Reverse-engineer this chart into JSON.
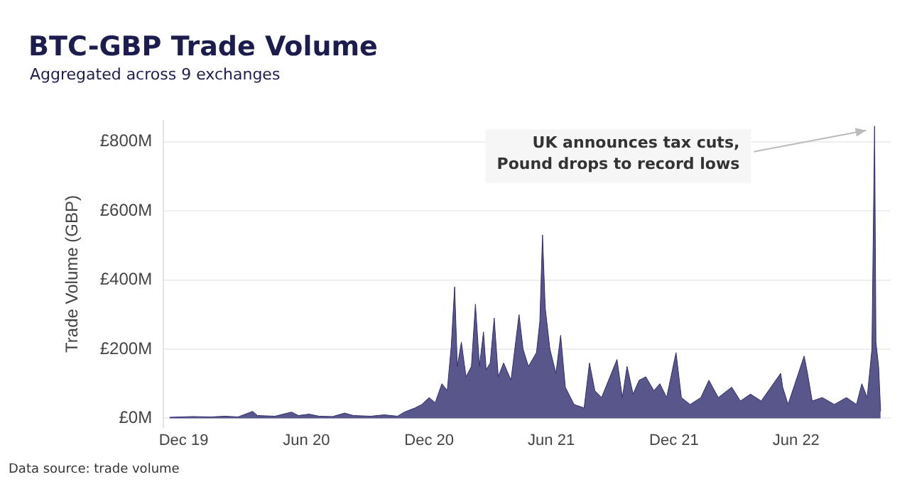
{
  "chart_data": {
    "type": "area",
    "title": "BTC-GBP Trade Volume",
    "subtitle": "Aggregated across 9 exchanges",
    "ylabel": "Trade Volume (GBP)",
    "annotations": [
      {
        "text": "UK announces tax cuts,\nPound drops to record lows",
        "x": "2022-09-26",
        "y": 845
      },
      "Data source: trade volume"
    ],
    "x": [
      "2019-11-10",
      "2019-12-15",
      "2020-01-10",
      "2020-02-01",
      "2020-02-20",
      "2020-03-13",
      "2020-03-20",
      "2020-04-15",
      "2020-05-10",
      "2020-05-20",
      "2020-06-05",
      "2020-06-20",
      "2020-07-10",
      "2020-07-28",
      "2020-08-10",
      "2020-09-05",
      "2020-09-25",
      "2020-10-15",
      "2020-10-25",
      "2020-11-10",
      "2020-11-20",
      "2020-12-01",
      "2020-12-10",
      "2020-12-20",
      "2020-12-28",
      "2021-01-03",
      "2021-01-08",
      "2021-01-12",
      "2021-01-18",
      "2021-01-25",
      "2021-02-02",
      "2021-02-08",
      "2021-02-14",
      "2021-02-20",
      "2021-02-24",
      "2021-03-02",
      "2021-03-08",
      "2021-03-14",
      "2021-03-22",
      "2021-04-02",
      "2021-04-14",
      "2021-04-20",
      "2021-04-28",
      "2021-05-10",
      "2021-05-15",
      "2021-05-19",
      "2021-05-23",
      "2021-05-30",
      "2021-06-08",
      "2021-06-15",
      "2021-06-22",
      "2021-07-05",
      "2021-07-20",
      "2021-07-28",
      "2021-08-05",
      "2021-08-15",
      "2021-09-07",
      "2021-09-15",
      "2021-09-22",
      "2021-10-01",
      "2021-10-10",
      "2021-10-20",
      "2021-11-01",
      "2021-11-10",
      "2021-11-20",
      "2021-12-04",
      "2021-12-12",
      "2021-12-25",
      "2022-01-10",
      "2022-01-22",
      "2022-02-05",
      "2022-02-25",
      "2022-03-10",
      "2022-03-25",
      "2022-04-10",
      "2022-05-09",
      "2022-05-12",
      "2022-05-20",
      "2022-06-13",
      "2022-06-18",
      "2022-06-25",
      "2022-07-10",
      "2022-07-28",
      "2022-08-15",
      "2022-08-30",
      "2022-09-07",
      "2022-09-15",
      "2022-09-22",
      "2022-09-26",
      "2022-09-28",
      "2022-10-02",
      "2022-10-05"
    ],
    "series": [
      {
        "color": "#2e2c6e",
        "values": [
          3,
          5,
          4,
          6,
          4,
          20,
          8,
          6,
          18,
          8,
          12,
          6,
          5,
          15,
          8,
          6,
          10,
          6,
          18,
          30,
          40,
          60,
          45,
          100,
          80,
          210,
          380,
          150,
          220,
          120,
          150,
          330,
          150,
          250,
          140,
          160,
          290,
          120,
          160,
          110,
          300,
          200,
          150,
          190,
          280,
          530,
          320,
          200,
          130,
          240,
          90,
          40,
          30,
          160,
          80,
          60,
          170,
          60,
          150,
          70,
          110,
          120,
          80,
          100,
          60,
          190,
          60,
          40,
          60,
          110,
          60,
          90,
          50,
          70,
          50,
          130,
          90,
          40,
          180,
          130,
          50,
          60,
          40,
          60,
          40,
          100,
          60,
          200,
          845,
          220,
          150,
          20
        ]
      }
    ],
    "ylim": [
      -25,
      860
    ],
    "yticks": [
      {
        "value": 0,
        "label": "£0M"
      },
      {
        "value": 200,
        "label": "£200M"
      },
      {
        "value": 400,
        "label": "£400M"
      },
      {
        "value": 600,
        "label": "£600M"
      },
      {
        "value": 800,
        "label": "£800M"
      }
    ],
    "xlim": [
      "2019-11-01",
      "2022-10-20"
    ],
    "xticks": [
      {
        "value": "2019-12-01",
        "label": "Dec 19"
      },
      {
        "value": "2020-06-01",
        "label": "Jun 20"
      },
      {
        "value": "2020-12-01",
        "label": "Dec 20"
      },
      {
        "value": "2021-06-01",
        "label": "Jun 21"
      },
      {
        "value": "2021-12-01",
        "label": "Dec 21"
      },
      {
        "value": "2022-06-01",
        "label": "Jun 22"
      }
    ],
    "grid": "y",
    "legend": false,
    "marker": "none",
    "line_style": "solid"
  }
}
